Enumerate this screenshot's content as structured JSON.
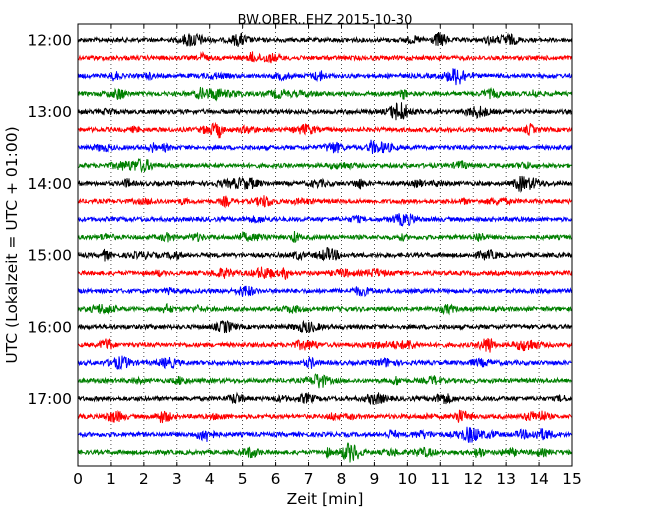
{
  "chart_data": {
    "type": "line",
    "title": "BW.OBER..EHZ 2015-10-30",
    "xlabel": "Zeit  [min]",
    "ylabel": "UTC (Lokalzeit = UTC + 01:00)",
    "xlim": [
      0,
      15
    ],
    "x_ticks": [
      "0",
      "1",
      "2",
      "3",
      "4",
      "5",
      "6",
      "7",
      "8",
      "9",
      "10",
      "11",
      "12",
      "13",
      "14",
      "15"
    ],
    "x_grid": "dotted vertical lines at each minute",
    "y_tick_labels": [
      "12:00",
      "13:00",
      "14:00",
      "15:00",
      "16:00",
      "17:00"
    ],
    "trace_interval_minutes": 15,
    "trace_colors": [
      "#000000",
      "#ff0000",
      "#0000ff",
      "#008000"
    ],
    "traces": [
      {
        "start": "12:00",
        "color": "#000000"
      },
      {
        "start": "12:15",
        "color": "#ff0000"
      },
      {
        "start": "12:30",
        "color": "#0000ff"
      },
      {
        "start": "12:45",
        "color": "#008000"
      },
      {
        "start": "13:00",
        "color": "#000000"
      },
      {
        "start": "13:15",
        "color": "#ff0000"
      },
      {
        "start": "13:30",
        "color": "#0000ff"
      },
      {
        "start": "13:45",
        "color": "#008000"
      },
      {
        "start": "14:00",
        "color": "#000000"
      },
      {
        "start": "14:15",
        "color": "#ff0000"
      },
      {
        "start": "14:30",
        "color": "#0000ff"
      },
      {
        "start": "14:45",
        "color": "#008000"
      },
      {
        "start": "15:00",
        "color": "#000000"
      },
      {
        "start": "15:15",
        "color": "#ff0000"
      },
      {
        "start": "15:30",
        "color": "#0000ff"
      },
      {
        "start": "15:45",
        "color": "#008000"
      },
      {
        "start": "16:00",
        "color": "#000000"
      },
      {
        "start": "16:15",
        "color": "#ff0000"
      },
      {
        "start": "16:30",
        "color": "#0000ff"
      },
      {
        "start": "16:45",
        "color": "#008000"
      },
      {
        "start": "17:00",
        "color": "#000000"
      },
      {
        "start": "17:15",
        "color": "#ff0000"
      },
      {
        "start": "17:30",
        "color": "#0000ff"
      },
      {
        "start": "17:45",
        "color": "#008000"
      }
    ]
  }
}
